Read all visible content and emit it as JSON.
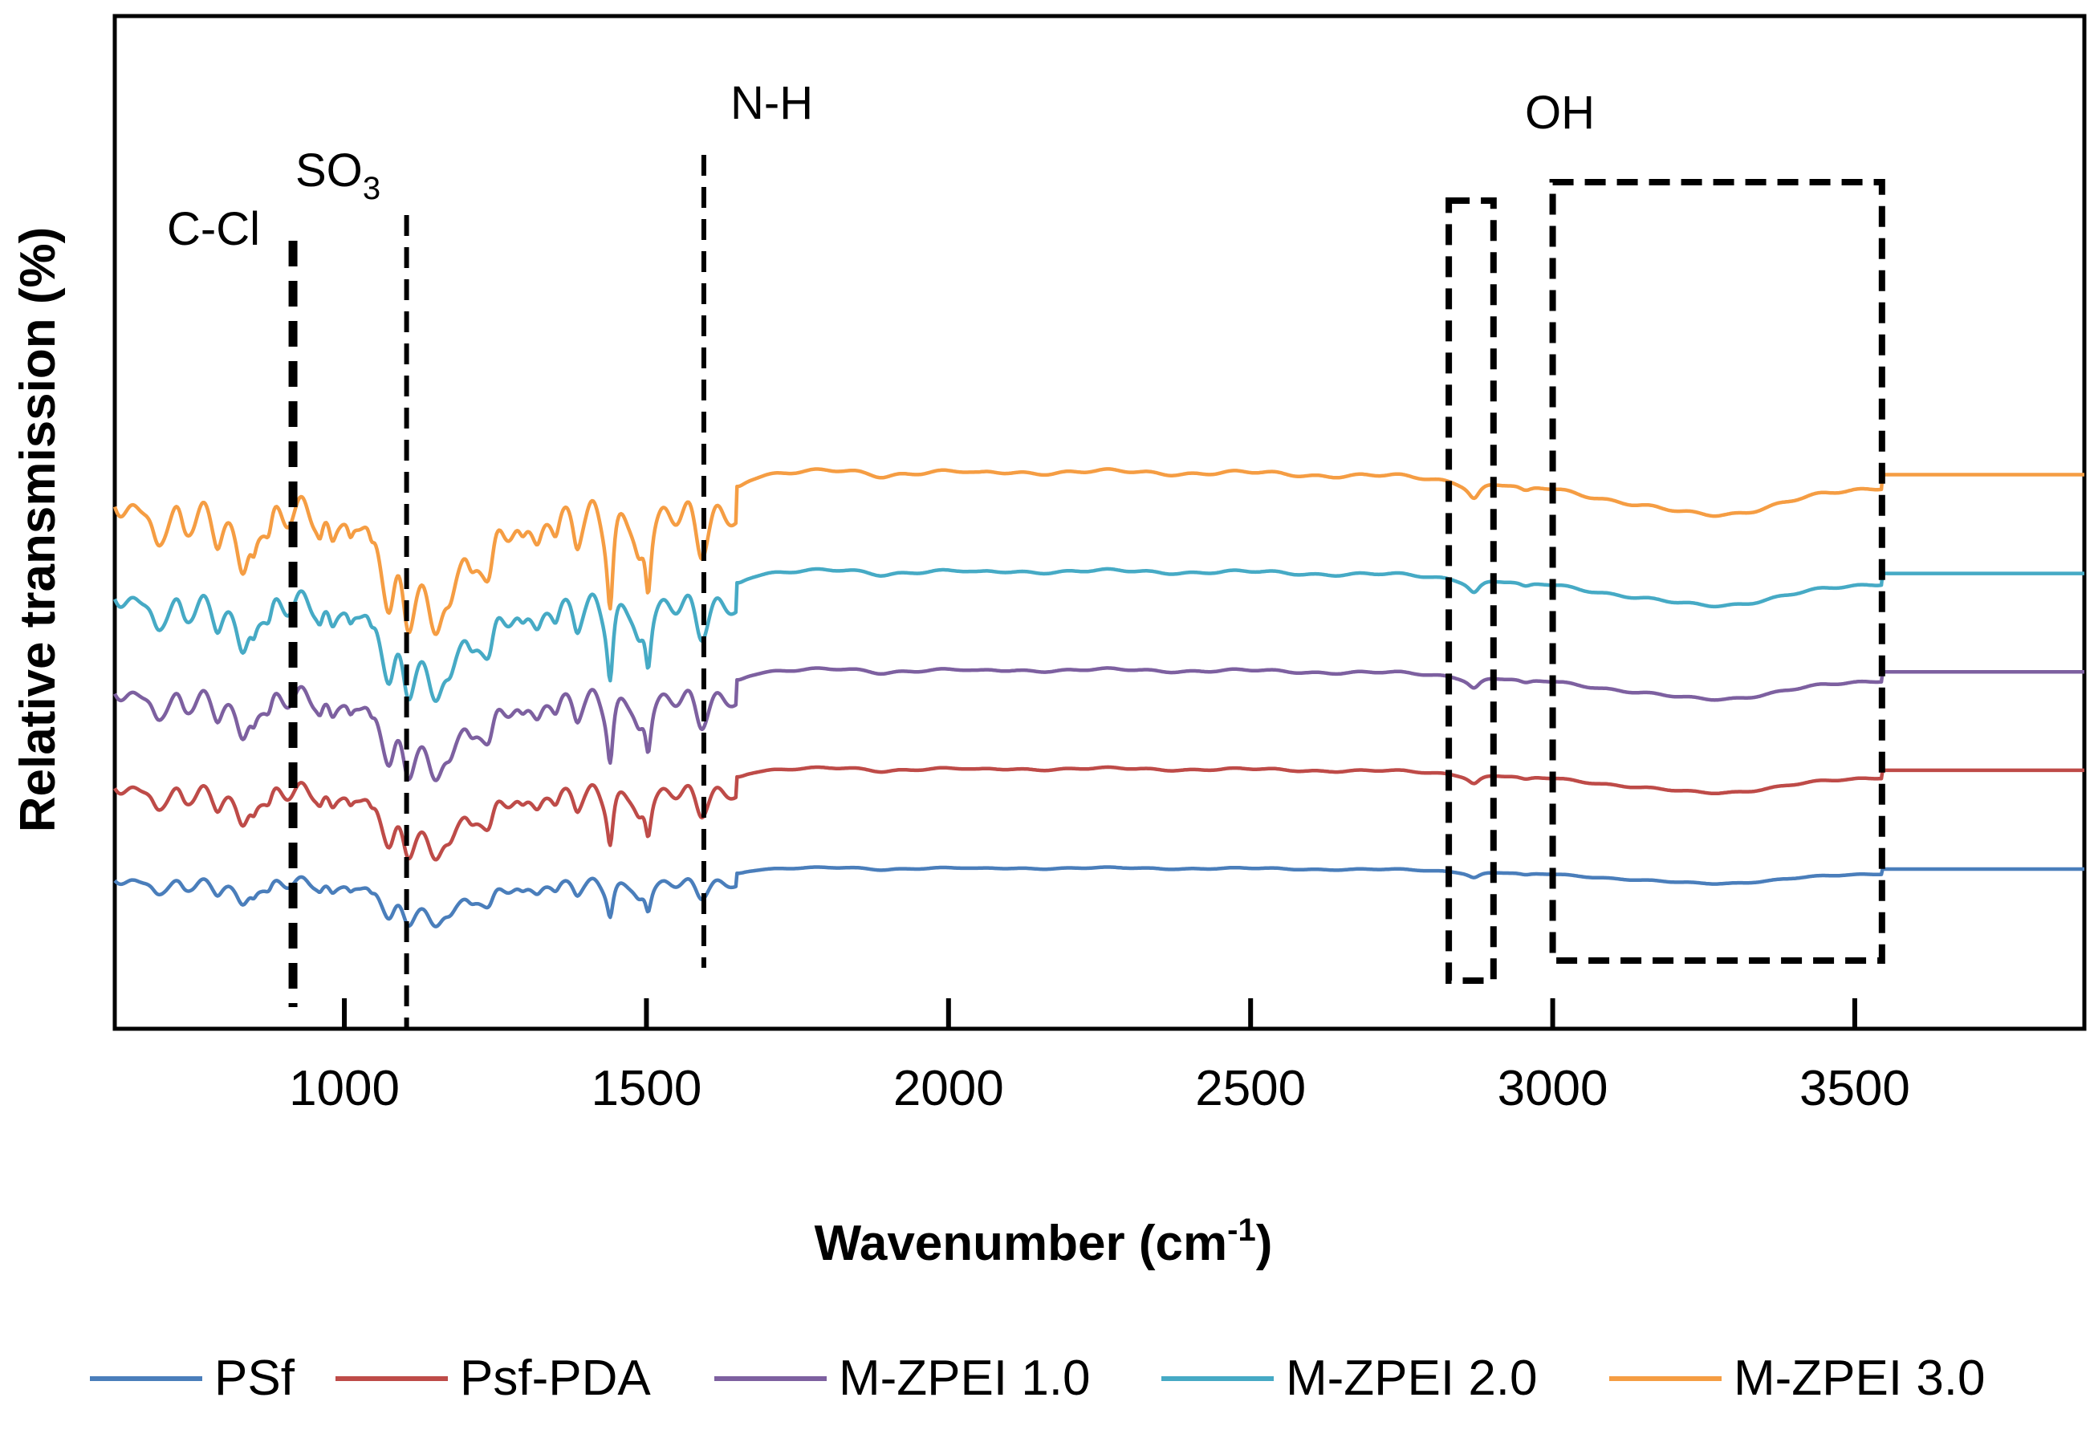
{
  "chart_data": {
    "type": "line",
    "title": "",
    "xlabel": "Wavenumber (cm",
    "xlabel_sup": "-1",
    "xlabel_tail": ")",
    "ylabel": "Relative transmission (%)",
    "xlim": [
      620,
      3880
    ],
    "x_ticks": [
      1000,
      1500,
      2000,
      2500,
      3000,
      3500
    ],
    "x_tick_labels": [
      "1000",
      "1500",
      "2000",
      "2500",
      "3000",
      "3500"
    ],
    "y_ticks": [],
    "grid": false,
    "legend_position": "bottom",
    "annotations": [
      {
        "label": "C-Cl",
        "x": 915,
        "style": "thick-dashed-line"
      },
      {
        "label": "SO",
        "sub": "3",
        "x": 1103,
        "style": "dashed-line"
      },
      {
        "label": "N-H",
        "x": 1595,
        "style": "dashed-line"
      },
      {
        "label": "OH",
        "x_range": [
          2828,
          2902
        ],
        "style": "dashed-box"
      },
      {
        "label": "",
        "x_range": [
          3000,
          3545
        ],
        "style": "dashed-box"
      }
    ],
    "series": [
      {
        "name": "PSf",
        "color": "#4a7ebb",
        "offset": 0,
        "amplitude": 0.45
      },
      {
        "name": "Psf-PDA",
        "color": "#be4b48",
        "offset": 1,
        "amplitude": 0.7
      },
      {
        "name": "M-ZPEI 1.0",
        "color": "#7d60a0",
        "offset": 2,
        "amplitude": 0.85
      },
      {
        "name": "M-ZPEI 2.0",
        "color": "#46aac5",
        "offset": 3,
        "amplitude": 1.0
      },
      {
        "name": "M-ZPEI 3.0",
        "color": "#f59d43",
        "offset": 4,
        "amplitude": 1.25
      }
    ]
  }
}
